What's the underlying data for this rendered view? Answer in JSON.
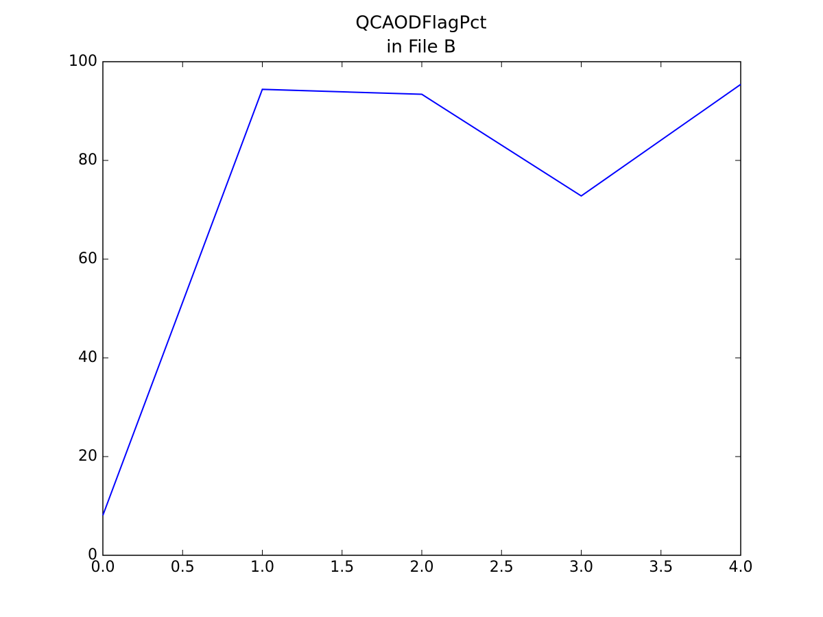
{
  "chart_data": {
    "type": "line",
    "title": "QCAODFlagPct",
    "subtitle": "in File B",
    "x": [
      0,
      1,
      2,
      3,
      4
    ],
    "series": [
      {
        "color": "#0000ff",
        "values": [
          8.1,
          94.4,
          93.4,
          72.8,
          95.4
        ]
      }
    ],
    "xlim": [
      0,
      4
    ],
    "xticks": [
      {
        "value": 0,
        "label": "0.0"
      },
      0.5,
      {
        "value": 1,
        "label": "1.0"
      },
      1.5,
      {
        "value": 2,
        "label": "2.0"
      },
      2.5,
      {
        "value": 3,
        "label": "3.0"
      },
      3.5,
      {
        "value": 4,
        "label": "4.0"
      }
    ],
    "ylim": [
      0,
      100
    ],
    "yticks": [
      0,
      20,
      40,
      60,
      80,
      100
    ],
    "grid": false
  }
}
